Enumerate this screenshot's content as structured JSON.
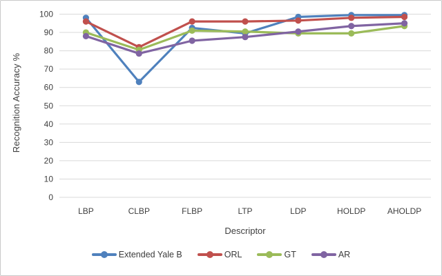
{
  "chart_data": {
    "type": "line",
    "title": "",
    "xlabel": "Descriptor",
    "ylabel": "Recognition Accuracy %",
    "categories": [
      "LBP",
      "CLBP",
      "FLBP",
      "LTP",
      "LDP",
      "HOLDP",
      "AHOLDP"
    ],
    "series": [
      {
        "name": "Extended Yale B",
        "color": "#4F81BD",
        "values": [
          98,
          63,
          92.5,
          89.5,
          98.5,
          99.5,
          99.5
        ]
      },
      {
        "name": "ORL",
        "color": "#C0504D",
        "values": [
          96,
          82,
          96,
          96,
          96.5,
          98,
          98.5
        ]
      },
      {
        "name": "GT",
        "color": "#9BBB59",
        "values": [
          90,
          80.5,
          91,
          90.5,
          89.5,
          89.5,
          93.5
        ]
      },
      {
        "name": "AR",
        "color": "#8064A2",
        "values": [
          88,
          78.5,
          85.5,
          87.5,
          90.5,
          93.5,
          95
        ]
      }
    ],
    "ylim": [
      0,
      100
    ],
    "yticks": [
      0,
      10,
      20,
      30,
      40,
      50,
      60,
      70,
      80,
      90,
      100
    ],
    "grid": "horizontal",
    "gridline_color": "#D9D9D9",
    "legend_position": "bottom",
    "marker": "circle",
    "axis_text_color": "#3F3F3F"
  }
}
